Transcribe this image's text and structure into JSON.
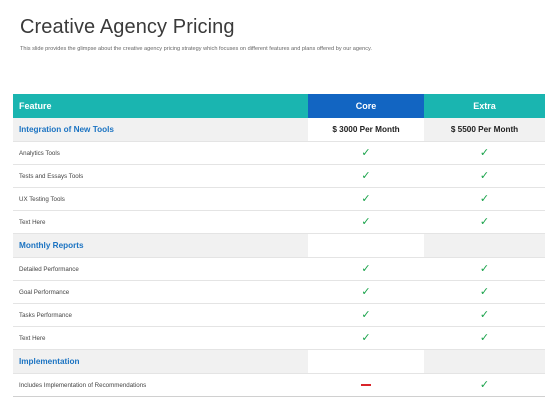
{
  "page": {
    "title": "Creative Agency Pricing",
    "subtitle": "This slide provides the glimpse about the creative agency pricing strategy which focuses on different features and plans offered by our agency."
  },
  "table": {
    "headers": [
      "Feature",
      "Core",
      "Extra"
    ],
    "sections": [
      {
        "name": "Integration of New Tools",
        "core": "$ 3000 Per Month",
        "extra": "$ 5500 Per Month",
        "items": [
          {
            "label": "Analytics Tools",
            "core": "check",
            "extra": "check"
          },
          {
            "label": "Tests and Essays Tools",
            "core": "check",
            "extra": "check"
          },
          {
            "label": "UX Testing Tools",
            "core": "check",
            "extra": "check"
          },
          {
            "label": "Text Here",
            "core": "check",
            "extra": "check"
          }
        ]
      },
      {
        "name": "Monthly Reports",
        "core": "",
        "extra": "",
        "items": [
          {
            "label": "Detailed Performance",
            "core": "check",
            "extra": "check"
          },
          {
            "label": "Goal Performance",
            "core": "check",
            "extra": "check"
          },
          {
            "label": "Tasks Performance",
            "core": "check",
            "extra": "check"
          },
          {
            "label": "Text Here",
            "core": "check",
            "extra": "check"
          }
        ]
      },
      {
        "name": "Implementation",
        "core": "",
        "extra": "",
        "items": [
          {
            "label": "Includes Implementation of Recommendations",
            "core": "dash",
            "extra": "check"
          }
        ]
      }
    ]
  },
  "icons": {
    "check": "check-icon",
    "dash": "minus-icon"
  },
  "colors": {
    "teal": "#1ab5b0",
    "blue": "#1265c2",
    "section_text": "#1b73c2",
    "check": "#19a34a",
    "dash": "#d9242a"
  }
}
